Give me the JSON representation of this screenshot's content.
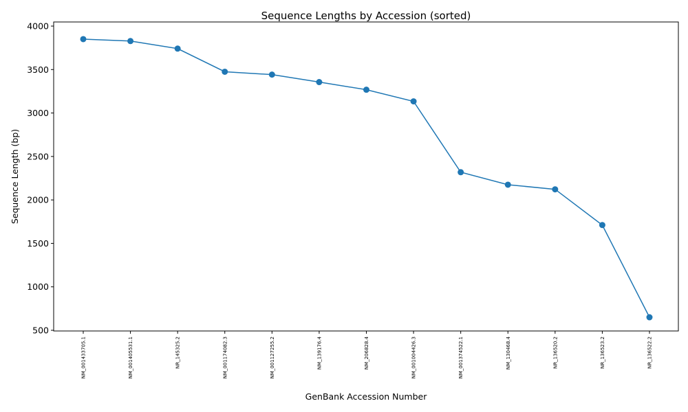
{
  "chart_data": {
    "type": "line",
    "title": "Sequence Lengths by Accession (sorted)",
    "xlabel": "GenBank Accession Number",
    "ylabel": "Sequence Length (bp)",
    "categories": [
      "NM_001433705.1",
      "NM_001405531.1",
      "NR_145325.2",
      "NM_001174082.3",
      "NM_001127255.2",
      "NM_139176.4",
      "NM_206828.4",
      "NM_001004426.3",
      "NM_001374522.1",
      "NM_130468.4",
      "NR_136520.2",
      "NR_136523.2",
      "NR_136522.2"
    ],
    "series": [
      {
        "values": [
          3850,
          3828,
          3741,
          3475,
          3442,
          3356,
          3268,
          3134,
          2319,
          2175,
          2122,
          1711,
          650
        ]
      }
    ],
    "ylim": [
      500,
      4000
    ],
    "yticks": [
      500,
      1000,
      1500,
      2000,
      2500,
      3000,
      3500,
      4000
    ],
    "grid": false,
    "marker": "circle",
    "line_color": "#1f77b4"
  }
}
